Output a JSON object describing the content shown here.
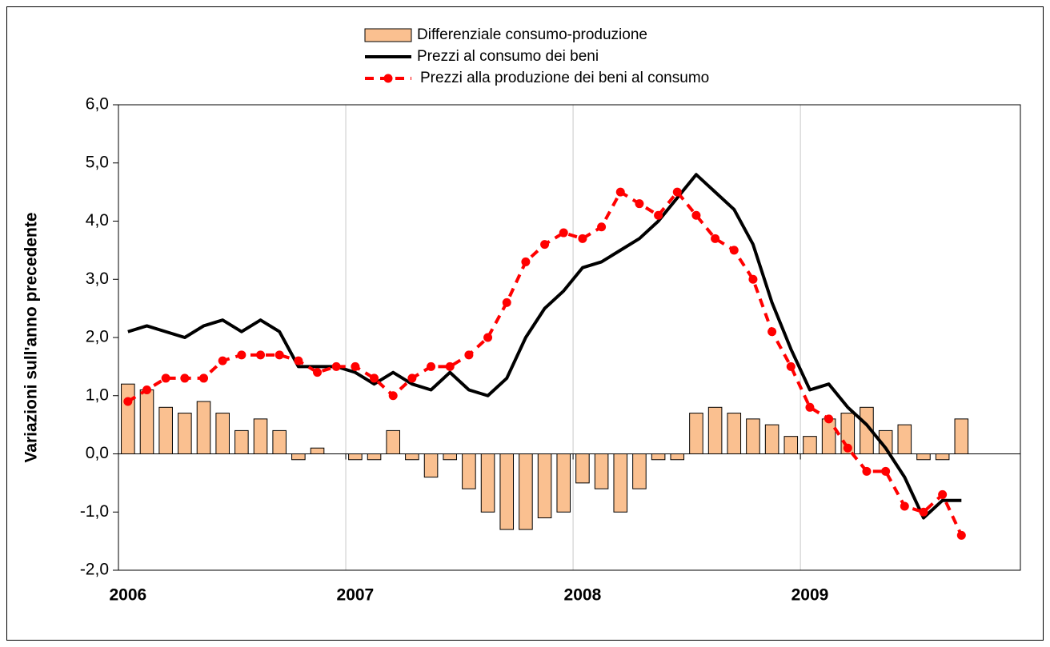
{
  "chart_data": {
    "type": "combo",
    "ylabel": "Variazioni sull'anno precedente",
    "categories": [
      "2006",
      null,
      null,
      null,
      null,
      null,
      null,
      null,
      null,
      null,
      null,
      null,
      "2007",
      null,
      null,
      null,
      null,
      null,
      null,
      null,
      null,
      null,
      null,
      null,
      "2008",
      null,
      null,
      null,
      null,
      null,
      null,
      null,
      null,
      null,
      null,
      null,
      "2009",
      null,
      null,
      null,
      null,
      null,
      null,
      null,
      null
    ],
    "ylim": [
      -2,
      6
    ],
    "yticks": [
      {
        "value": -2,
        "label": "-2,0"
      },
      {
        "value": -1,
        "label": "-1,0"
      },
      {
        "value": 0,
        "label": "0,0"
      },
      {
        "value": 1,
        "label": "1,0"
      },
      {
        "value": 2,
        "label": "2,0"
      },
      {
        "value": 3,
        "label": "3,0"
      },
      {
        "value": 4,
        "label": "4,0"
      },
      {
        "value": 5,
        "label": "5,0"
      },
      {
        "value": 6,
        "label": "6,0"
      }
    ],
    "series": [
      {
        "name": "Differenziale consumo-produzione",
        "type": "bar",
        "color": "#fac090",
        "values": [
          1.2,
          1.1,
          0.8,
          0.7,
          0.9,
          0.7,
          0.4,
          0.6,
          0.4,
          -0.1,
          0.1,
          0,
          -0.1,
          -0.1,
          0.4,
          -0.1,
          -0.4,
          -0.1,
          -0.6,
          -1.0,
          -1.3,
          -1.3,
          -1.1,
          -1.0,
          -0.5,
          -0.6,
          -1.0,
          -0.6,
          -0.1,
          -0.1,
          0.7,
          0.8,
          0.7,
          0.6,
          0.5,
          0.3,
          0.3,
          0.6,
          0.7,
          0.8,
          0.4,
          0.5,
          -0.1,
          -0.1,
          0.6
        ]
      },
      {
        "name": "Prezzi al consumo dei beni",
        "type": "line",
        "color": "#000000",
        "values": [
          2.1,
          2.2,
          2.1,
          2.0,
          2.2,
          2.3,
          2.1,
          2.3,
          2.1,
          1.5,
          1.5,
          1.5,
          1.4,
          1.2,
          1.4,
          1.2,
          1.1,
          1.4,
          1.1,
          1.0,
          1.3,
          2.0,
          2.5,
          2.8,
          3.2,
          3.3,
          3.5,
          3.7,
          4.0,
          4.4,
          4.8,
          4.5,
          4.2,
          3.6,
          2.6,
          1.8,
          1.1,
          1.2,
          0.8,
          0.5,
          0.1,
          -0.4,
          -1.1,
          -0.8,
          -0.8
        ]
      },
      {
        "name": "Prezzi alla produzione dei beni al consumo",
        "type": "line",
        "color": "#ff0000",
        "dashed": true,
        "markers": true,
        "values": [
          0.9,
          1.1,
          1.3,
          1.3,
          1.3,
          1.6,
          1.7,
          1.7,
          1.7,
          1.6,
          1.4,
          1.5,
          1.5,
          1.3,
          1.0,
          1.3,
          1.5,
          1.5,
          1.7,
          2.0,
          2.6,
          3.3,
          3.6,
          3.8,
          3.7,
          3.9,
          4.5,
          4.3,
          4.1,
          4.5,
          4.1,
          3.7,
          3.5,
          3.0,
          2.1,
          1.5,
          0.8,
          0.6,
          0.1,
          -0.3,
          -0.3,
          -0.9,
          -1.0,
          -0.7,
          -1.4
        ]
      }
    ]
  }
}
